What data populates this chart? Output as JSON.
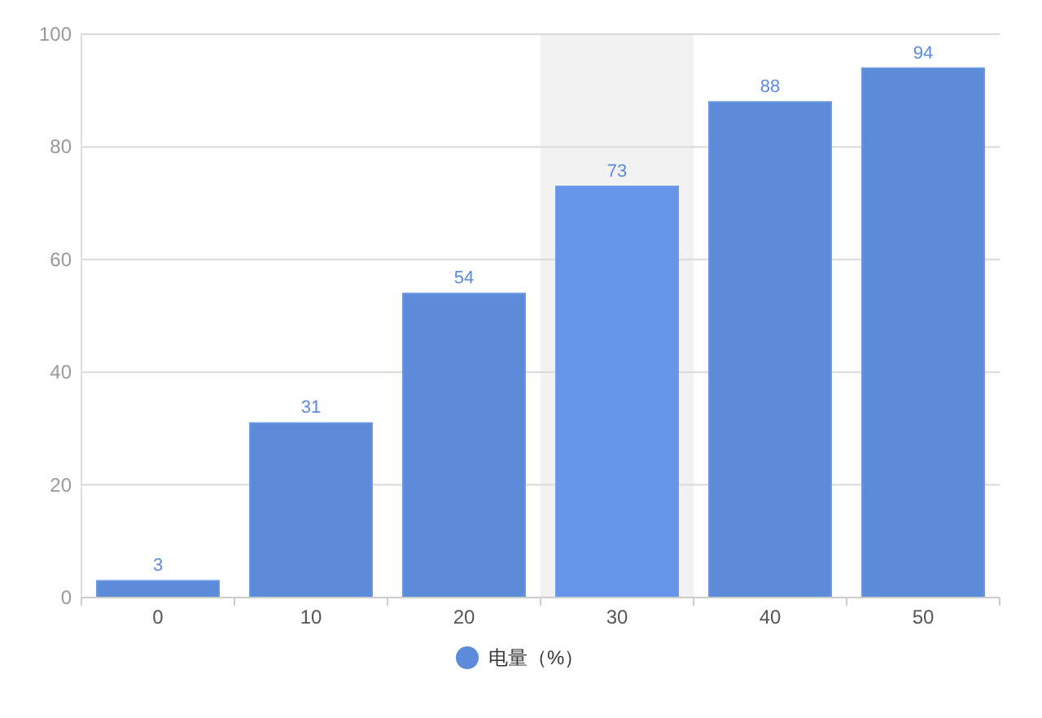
{
  "chart_data": {
    "type": "bar",
    "categories": [
      "0",
      "10",
      "20",
      "30",
      "40",
      "50"
    ],
    "series": [
      {
        "name": "电量（%）",
        "color": "#5b8bd9",
        "colors": [
          "#5b8bd9",
          "#5b8bd9",
          "#5b8bd9",
          "#6596ec",
          "#5b8bd9",
          "#5b8bd9"
        ],
        "values": [
          3,
          31,
          54,
          73,
          88,
          94
        ]
      }
    ],
    "ylim": [
      0,
      100
    ],
    "yticks": [
      0,
      20,
      40,
      60,
      80,
      100
    ],
    "bands": [
      {
        "axis": "x",
        "from": "30",
        "to": "30",
        "color": "#f2f2f2"
      }
    ],
    "grid": "y",
    "data_labels": true,
    "legend": "bottom"
  }
}
